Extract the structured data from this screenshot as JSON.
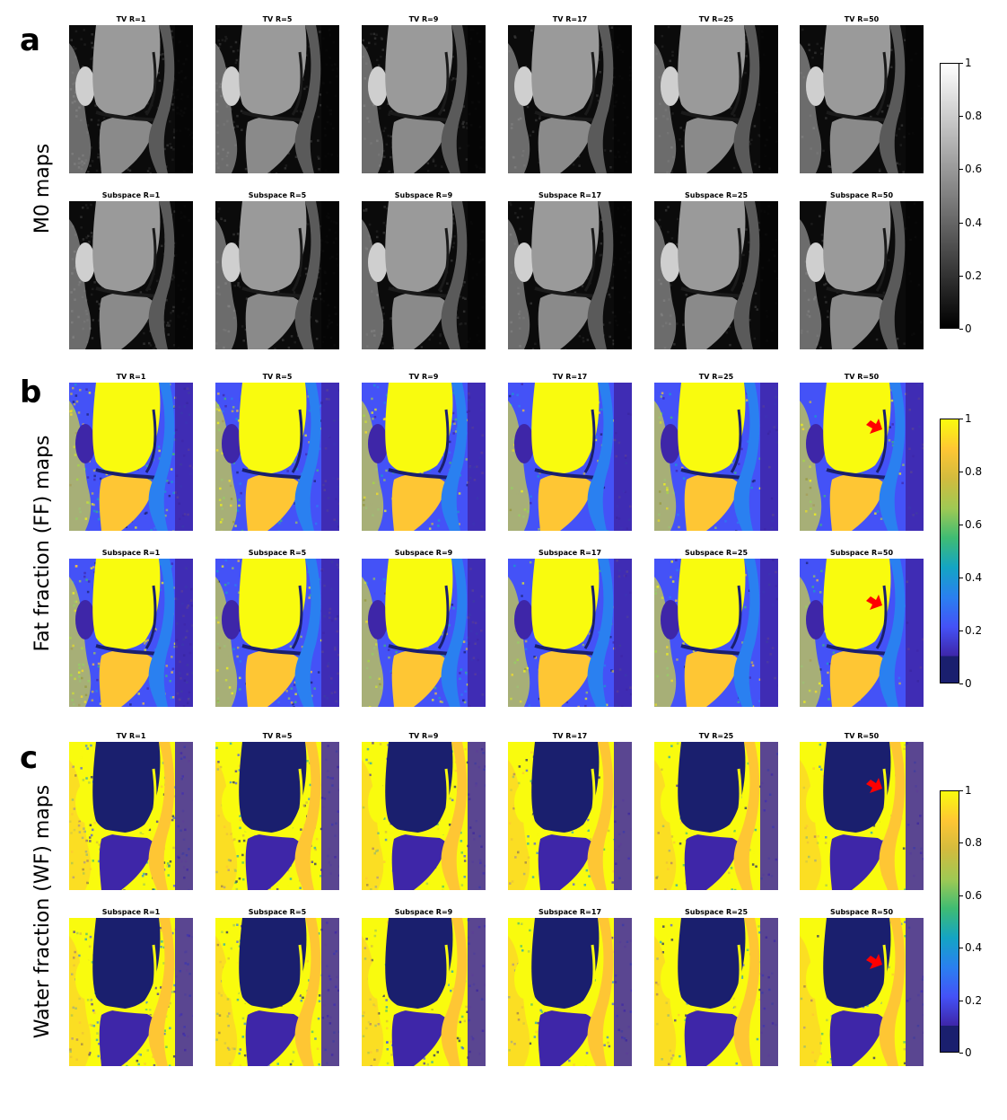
{
  "panels": [
    {
      "letter": "a",
      "ylabel": "M0 maps",
      "colormap": "gray",
      "rows": [
        [
          "TV R=1",
          "TV R=5",
          "TV R=9",
          "TV R=17",
          "TV R=25",
          "TV R=50"
        ],
        [
          "Subspace R=1",
          "Subspace R=5",
          "Subspace R=9",
          "Subspace R=17",
          "Subspace R=25",
          "Subspace R=50"
        ]
      ],
      "colorbar_ticks": [
        "1",
        "0.8",
        "0.6",
        "0.4",
        "0.2",
        "0"
      ]
    },
    {
      "letter": "b",
      "ylabel": "Fat fraction (FF) maps",
      "colormap": "parula",
      "rows": [
        [
          "TV R=1",
          "TV R=5",
          "TV R=9",
          "TV R=17",
          "TV R=25",
          "TV R=50"
        ],
        [
          "Subspace R=1",
          "Subspace R=5",
          "Subspace R=9",
          "Subspace R=17",
          "Subspace R=25",
          "Subspace R=50"
        ]
      ],
      "colorbar_ticks": [
        "1",
        "0.8",
        "0.6",
        "0.4",
        "0.2",
        "0"
      ],
      "arrow_tiles": [
        "TV R=50",
        "Subspace R=50"
      ]
    },
    {
      "letter": "c",
      "ylabel": "Water fraction (WF) maps",
      "colormap": "parula",
      "rows": [
        [
          "TV R=1",
          "TV R=5",
          "TV R=9",
          "TV R=17",
          "TV R=25",
          "TV R=50"
        ],
        [
          "Subspace R=1",
          "Subspace R=5",
          "Subspace R=9",
          "Subspace R=17",
          "Subspace R=25",
          "Subspace R=50"
        ]
      ],
      "colorbar_ticks": [
        "1",
        "0.8",
        "0.6",
        "0.4",
        "0.2",
        "0"
      ],
      "arrow_tiles": [
        "TV R=50",
        "Subspace R=50"
      ]
    }
  ],
  "colors": {
    "gray_top": "#ffffff",
    "gray_bottom": "#000000",
    "parula": [
      "#f9fb0e",
      "#fec634",
      "#d2bb3e",
      "#9fc954",
      "#3fbc73",
      "#14a4c4",
      "#2a80f0",
      "#4452f7",
      "#3e26a8",
      "#1a1f6e"
    ],
    "arrow": "#ff0000"
  }
}
